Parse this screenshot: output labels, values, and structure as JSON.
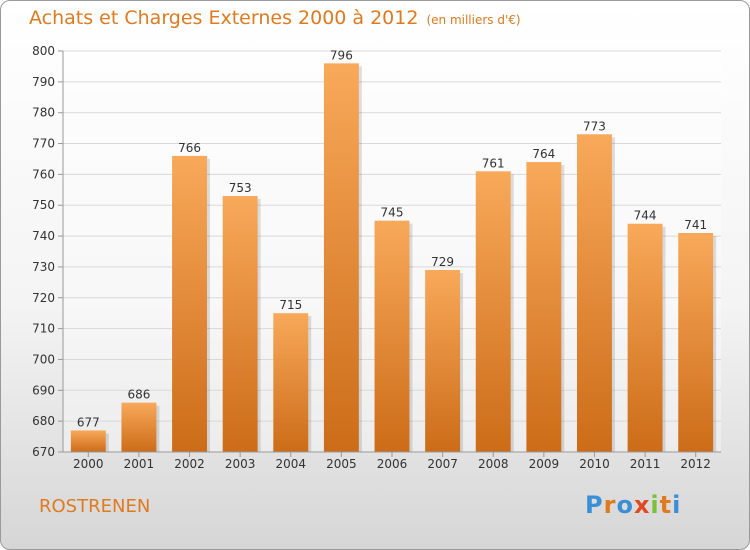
{
  "header": {
    "title": "Achats et Charges Externes 2000 à 2012",
    "subtitle": "(en milliers d'€)"
  },
  "footer": {
    "city": "ROSTRENEN",
    "brand": "Proxiti",
    "brand_letters": [
      {
        "ch": "P",
        "color": "#3a8fd6"
      },
      {
        "ch": "r",
        "color": "#e07a1e"
      },
      {
        "ch": "o",
        "color": "#3a8fd6"
      },
      {
        "ch": "x",
        "color": "#e04a1e"
      },
      {
        "ch": "i",
        "color": "#7bbf3a"
      },
      {
        "ch": "t",
        "color": "#e07a1e"
      },
      {
        "ch": "i",
        "color": "#3a8fd6"
      }
    ]
  },
  "colors": {
    "accent": "#e07a1e",
    "bar_top": "#f8a95a",
    "bar_bottom": "#cc6c18",
    "grid": "#d9d9d9"
  },
  "chart_data": {
    "type": "bar",
    "title": "Achats et Charges Externes 2000 à 2012",
    "subtitle": "(en milliers d'€)",
    "xlabel": "",
    "ylabel": "",
    "categories": [
      "2000",
      "2001",
      "2002",
      "2003",
      "2004",
      "2005",
      "2006",
      "2007",
      "2008",
      "2009",
      "2010",
      "2011",
      "2012"
    ],
    "values": [
      677,
      686,
      766,
      753,
      715,
      796,
      745,
      729,
      761,
      764,
      773,
      744,
      741
    ],
    "ylim": [
      670,
      800
    ],
    "yticks": [
      670,
      680,
      690,
      700,
      710,
      720,
      730,
      740,
      750,
      760,
      770,
      780,
      790,
      800
    ],
    "grid": true,
    "data_labels": true
  }
}
